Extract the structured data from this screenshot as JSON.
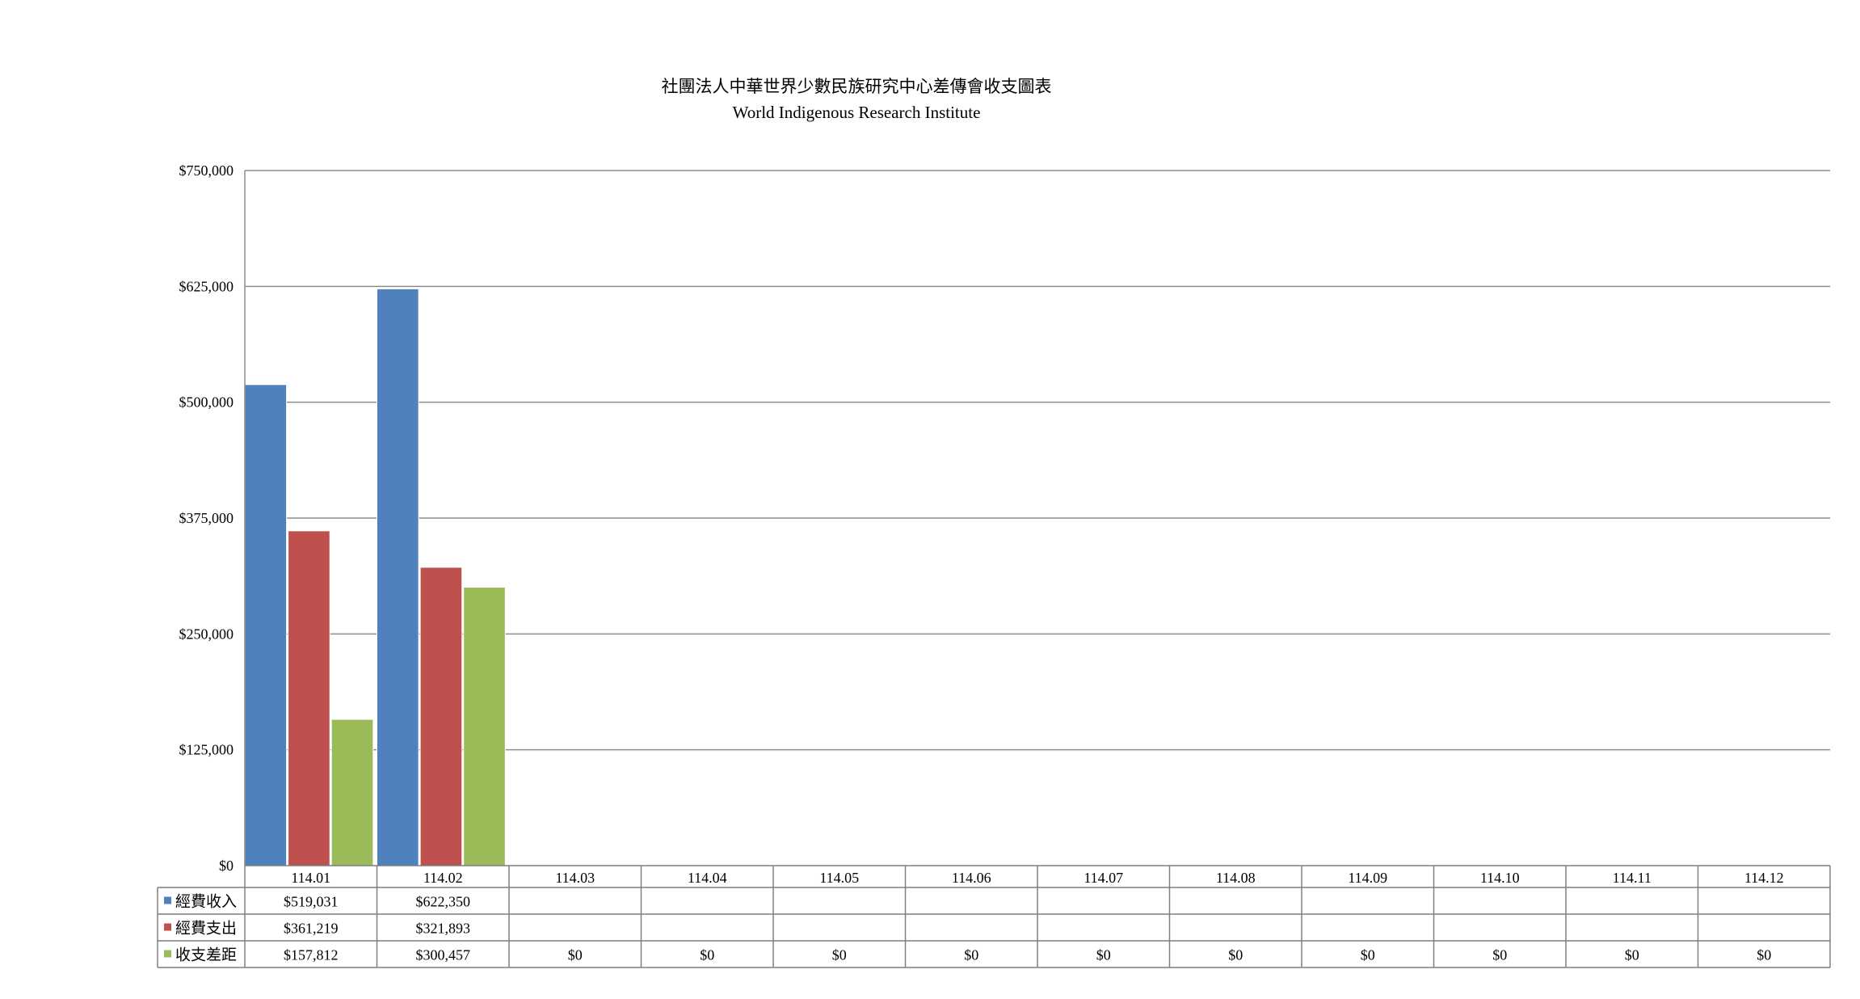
{
  "chart_data": {
    "type": "bar",
    "title": "社團法人中華世界少數民族研究中心差傳會收支圖表",
    "subtitle": "World Indigenous Research Institute",
    "categories": [
      "114.01",
      "114.02",
      "114.03",
      "114.04",
      "114.05",
      "114.06",
      "114.07",
      "114.08",
      "114.09",
      "114.10",
      "114.11",
      "114.12"
    ],
    "series": [
      {
        "name": "經費收入",
        "color": "#4F81BD",
        "values": [
          519031,
          622350,
          null,
          null,
          null,
          null,
          null,
          null,
          null,
          null,
          null,
          null
        ],
        "labels": [
          "$519,031",
          "$622,350",
          "",
          "",
          "",
          "",
          "",
          "",
          "",
          "",
          "",
          ""
        ]
      },
      {
        "name": "經費支出",
        "color": "#C0504D",
        "values": [
          361219,
          321893,
          null,
          null,
          null,
          null,
          null,
          null,
          null,
          null,
          null,
          null
        ],
        "labels": [
          "$361,219",
          "$321,893",
          "",
          "",
          "",
          "",
          "",
          "",
          "",
          "",
          "",
          ""
        ]
      },
      {
        "name": "收支差距",
        "color": "#9BBB59",
        "values": [
          157812,
          300457,
          0,
          0,
          0,
          0,
          0,
          0,
          0,
          0,
          0,
          0
        ],
        "labels": [
          "$157,812",
          "$300,457",
          "$0",
          "$0",
          "$0",
          "$0",
          "$0",
          "$0",
          "$0",
          "$0",
          "$0",
          "$0"
        ]
      }
    ],
    "ylim": [
      0,
      750000
    ],
    "yticks": [
      0,
      125000,
      250000,
      375000,
      500000,
      625000,
      750000
    ],
    "ytick_labels": [
      "$0",
      "$125,000",
      "$250,000",
      "$375,000",
      "$500,000",
      "$625,000",
      "$750,000"
    ],
    "grid": true,
    "data_table": true,
    "legend": "data-table-left"
  }
}
